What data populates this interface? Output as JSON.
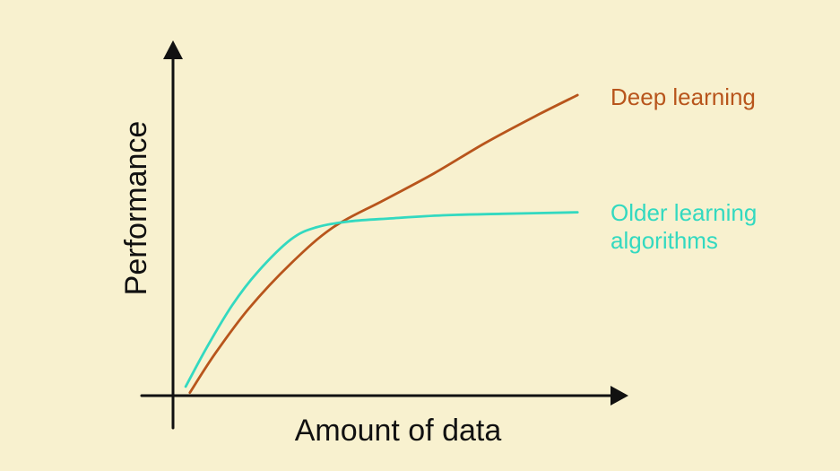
{
  "chart_data": {
    "type": "line",
    "title": "",
    "xlabel": "Amount of data",
    "ylabel": "Performance",
    "xlim": [
      0,
      100
    ],
    "ylim": [
      0,
      100
    ],
    "grid": false,
    "legend": "inline-right",
    "series": [
      {
        "name": "Deep learning",
        "label_lines": [
          "Deep learning"
        ],
        "color": "#b8551c",
        "x": [
          4,
          10,
          18,
          28,
          38,
          50,
          62,
          74,
          86,
          96
        ],
        "y": [
          1,
          14,
          29,
          44,
          56,
          65,
          74,
          84,
          93,
          100
        ]
      },
      {
        "name": "Older learning algorithms",
        "label_lines": [
          "Older learning",
          "algorithms"
        ],
        "color": "#33d9c0",
        "x": [
          3,
          8,
          14,
          20,
          28,
          34,
          42,
          52,
          64,
          78,
          96
        ],
        "y": [
          3,
          16,
          30,
          41,
          52,
          56,
          58,
          59,
          60,
          60.5,
          61
        ]
      }
    ]
  }
}
